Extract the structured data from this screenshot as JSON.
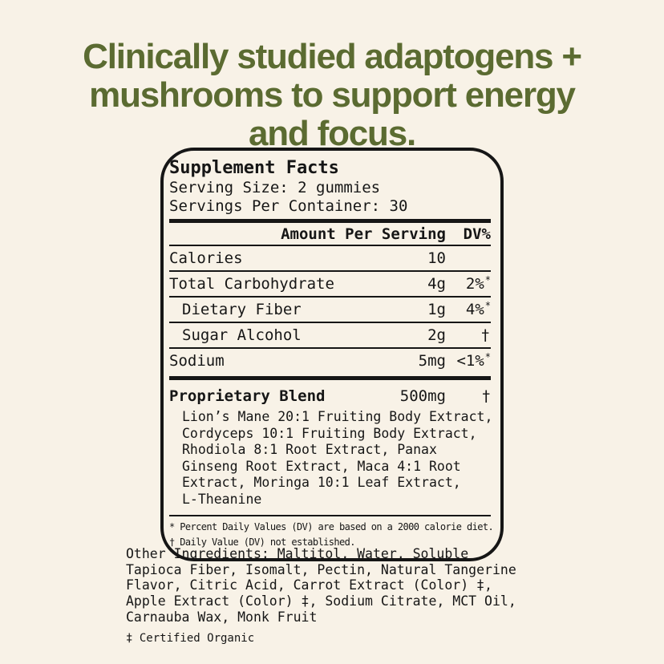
{
  "theme": {
    "background": "#f8f2e7",
    "heading_color": "#5b6b31",
    "ink": "#161616"
  },
  "heading": {
    "lines": [
      "Clinically studied adaptogens +",
      "mushrooms to support energy",
      "and focus."
    ]
  },
  "panel": {
    "title": "Supplement Facts",
    "serving_size": "Serving Size: 2 gummies",
    "servings_per_container": "Servings Per Container: 30",
    "columns": {
      "amount": "Amount Per Serving",
      "dv": "DV%"
    },
    "rows": [
      {
        "label": "Calories",
        "amount": "10",
        "dv": "",
        "dv_sup": ""
      },
      {
        "label": "Total Carbohydrate",
        "amount": "4g",
        "dv": "2%",
        "dv_sup": "*"
      },
      {
        "label": "Dietary Fiber",
        "amount": "1g",
        "dv": "4%",
        "dv_sup": "*"
      },
      {
        "label": "Sugar Alcohol",
        "amount": "2g",
        "dv": "†",
        "dv_sup": ""
      },
      {
        "label": "Sodium",
        "amount": "5mg",
        "dv": "<1%",
        "dv_sup": "*"
      }
    ],
    "blend": {
      "label": "Proprietary Blend",
      "amount": "500mg",
      "dv": "†",
      "description_lines": [
        "Lion’s Mane 20:1 Fruiting Body Extract,",
        "Cordyceps 10:1 Fruiting Body Extract,",
        "Rhodiola 8:1 Root Extract, Panax",
        "Ginseng Root Extract, Maca 4:1 Root",
        "Extract, Moringa 10:1 Leaf Extract,",
        "L-Theanine"
      ]
    },
    "footnotes": [
      "* Percent Daily Values (DV) are based on a 2000 calorie diet.",
      "† Daily Value (DV) not established."
    ]
  },
  "other_ingredients": {
    "lines": [
      "Other Ingredients: Maltitol, Water, Soluble",
      "Tapioca Fiber, Isomalt, Pectin, Natural Tangerine",
      "Flavor, Citric Acid, Carrot Extract (Color) ‡,",
      "Apple Extract (Color) ‡, Sodium Citrate, MCT Oil,",
      "Carnauba Wax, Monk Fruit"
    ],
    "certified_note": "‡ Certified Organic"
  }
}
